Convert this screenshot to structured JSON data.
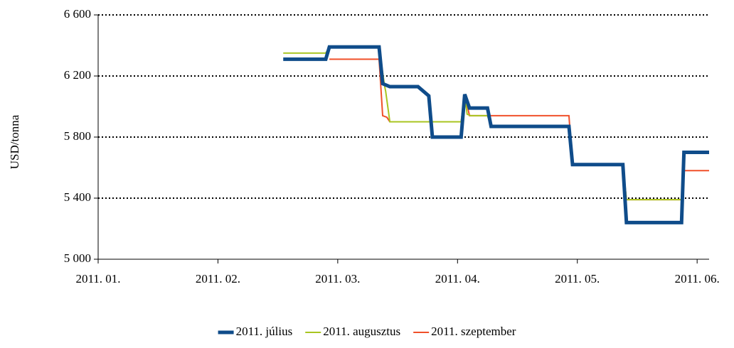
{
  "chart_data": {
    "type": "line",
    "y_label": "USD/tonna",
    "xlim": [
      1,
      6.1
    ],
    "xticks": [
      {
        "value": 1,
        "label": "2011. 01."
      },
      {
        "value": 2,
        "label": "2011. 02."
      },
      {
        "value": 3,
        "label": "2011. 03."
      },
      {
        "value": 4,
        "label": "2011. 04."
      },
      {
        "value": 5,
        "label": "2011. 05."
      },
      {
        "value": 6,
        "label": "2011. 06."
      }
    ],
    "ylim": [
      5000,
      6600
    ],
    "yticks": [
      {
        "value": 5000,
        "label": "5 000"
      },
      {
        "value": 5400,
        "label": "5 400"
      },
      {
        "value": 5800,
        "label": "5 800"
      },
      {
        "value": 6200,
        "label": "6 200"
      },
      {
        "value": 6600,
        "label": "6 600"
      }
    ],
    "grid": true,
    "legend": "bottom",
    "series": [
      {
        "name": "2011. szeptember",
        "color": "#f0502a",
        "width": 2,
        "x": [
          2.93,
          3.345,
          3.375,
          3.41,
          3.435,
          4.03,
          4.06,
          4.1,
          4.93,
          4.96,
          5.38,
          5.41,
          5.87,
          5.89,
          6.1
        ],
        "values": [
          6310,
          6310,
          5940,
          5930,
          5900,
          5900,
          6080,
          5940,
          5940,
          5620,
          5620,
          5390,
          5390,
          5580,
          5580
        ]
      },
      {
        "name": "2011. augusztus",
        "color": "#a8c520",
        "width": 2,
        "x": [
          2.545,
          2.9,
          2.93,
          3.345,
          3.39,
          3.4,
          3.435,
          4.03,
          4.06,
          4.08,
          4.11,
          4.25,
          4.28,
          4.93,
          4.96,
          5.38,
          5.41,
          5.87,
          5.89,
          6.1
        ],
        "values": [
          6350,
          6350,
          6390,
          6390,
          6140,
          6100,
          5900,
          5900,
          6080,
          5950,
          5940,
          5940,
          5870,
          5870,
          5620,
          5620,
          5390,
          5390,
          5700,
          5700
        ]
      },
      {
        "name": "2011. július",
        "color": "#0f4c8a",
        "width": 5,
        "x": [
          2.545,
          2.9,
          2.93,
          3.345,
          3.375,
          3.435,
          3.67,
          3.76,
          3.79,
          4.03,
          4.06,
          4.1,
          4.25,
          4.28,
          4.93,
          4.96,
          5.38,
          5.41,
          5.87,
          5.89,
          6.1
        ],
        "values": [
          6310,
          6310,
          6390,
          6390,
          6150,
          6130,
          6130,
          6070,
          5800,
          5800,
          6080,
          5990,
          5990,
          5870,
          5870,
          5620,
          5620,
          5240,
          5240,
          5700,
          5700
        ]
      }
    ],
    "legend_order": [
      2,
      1,
      0
    ]
  }
}
